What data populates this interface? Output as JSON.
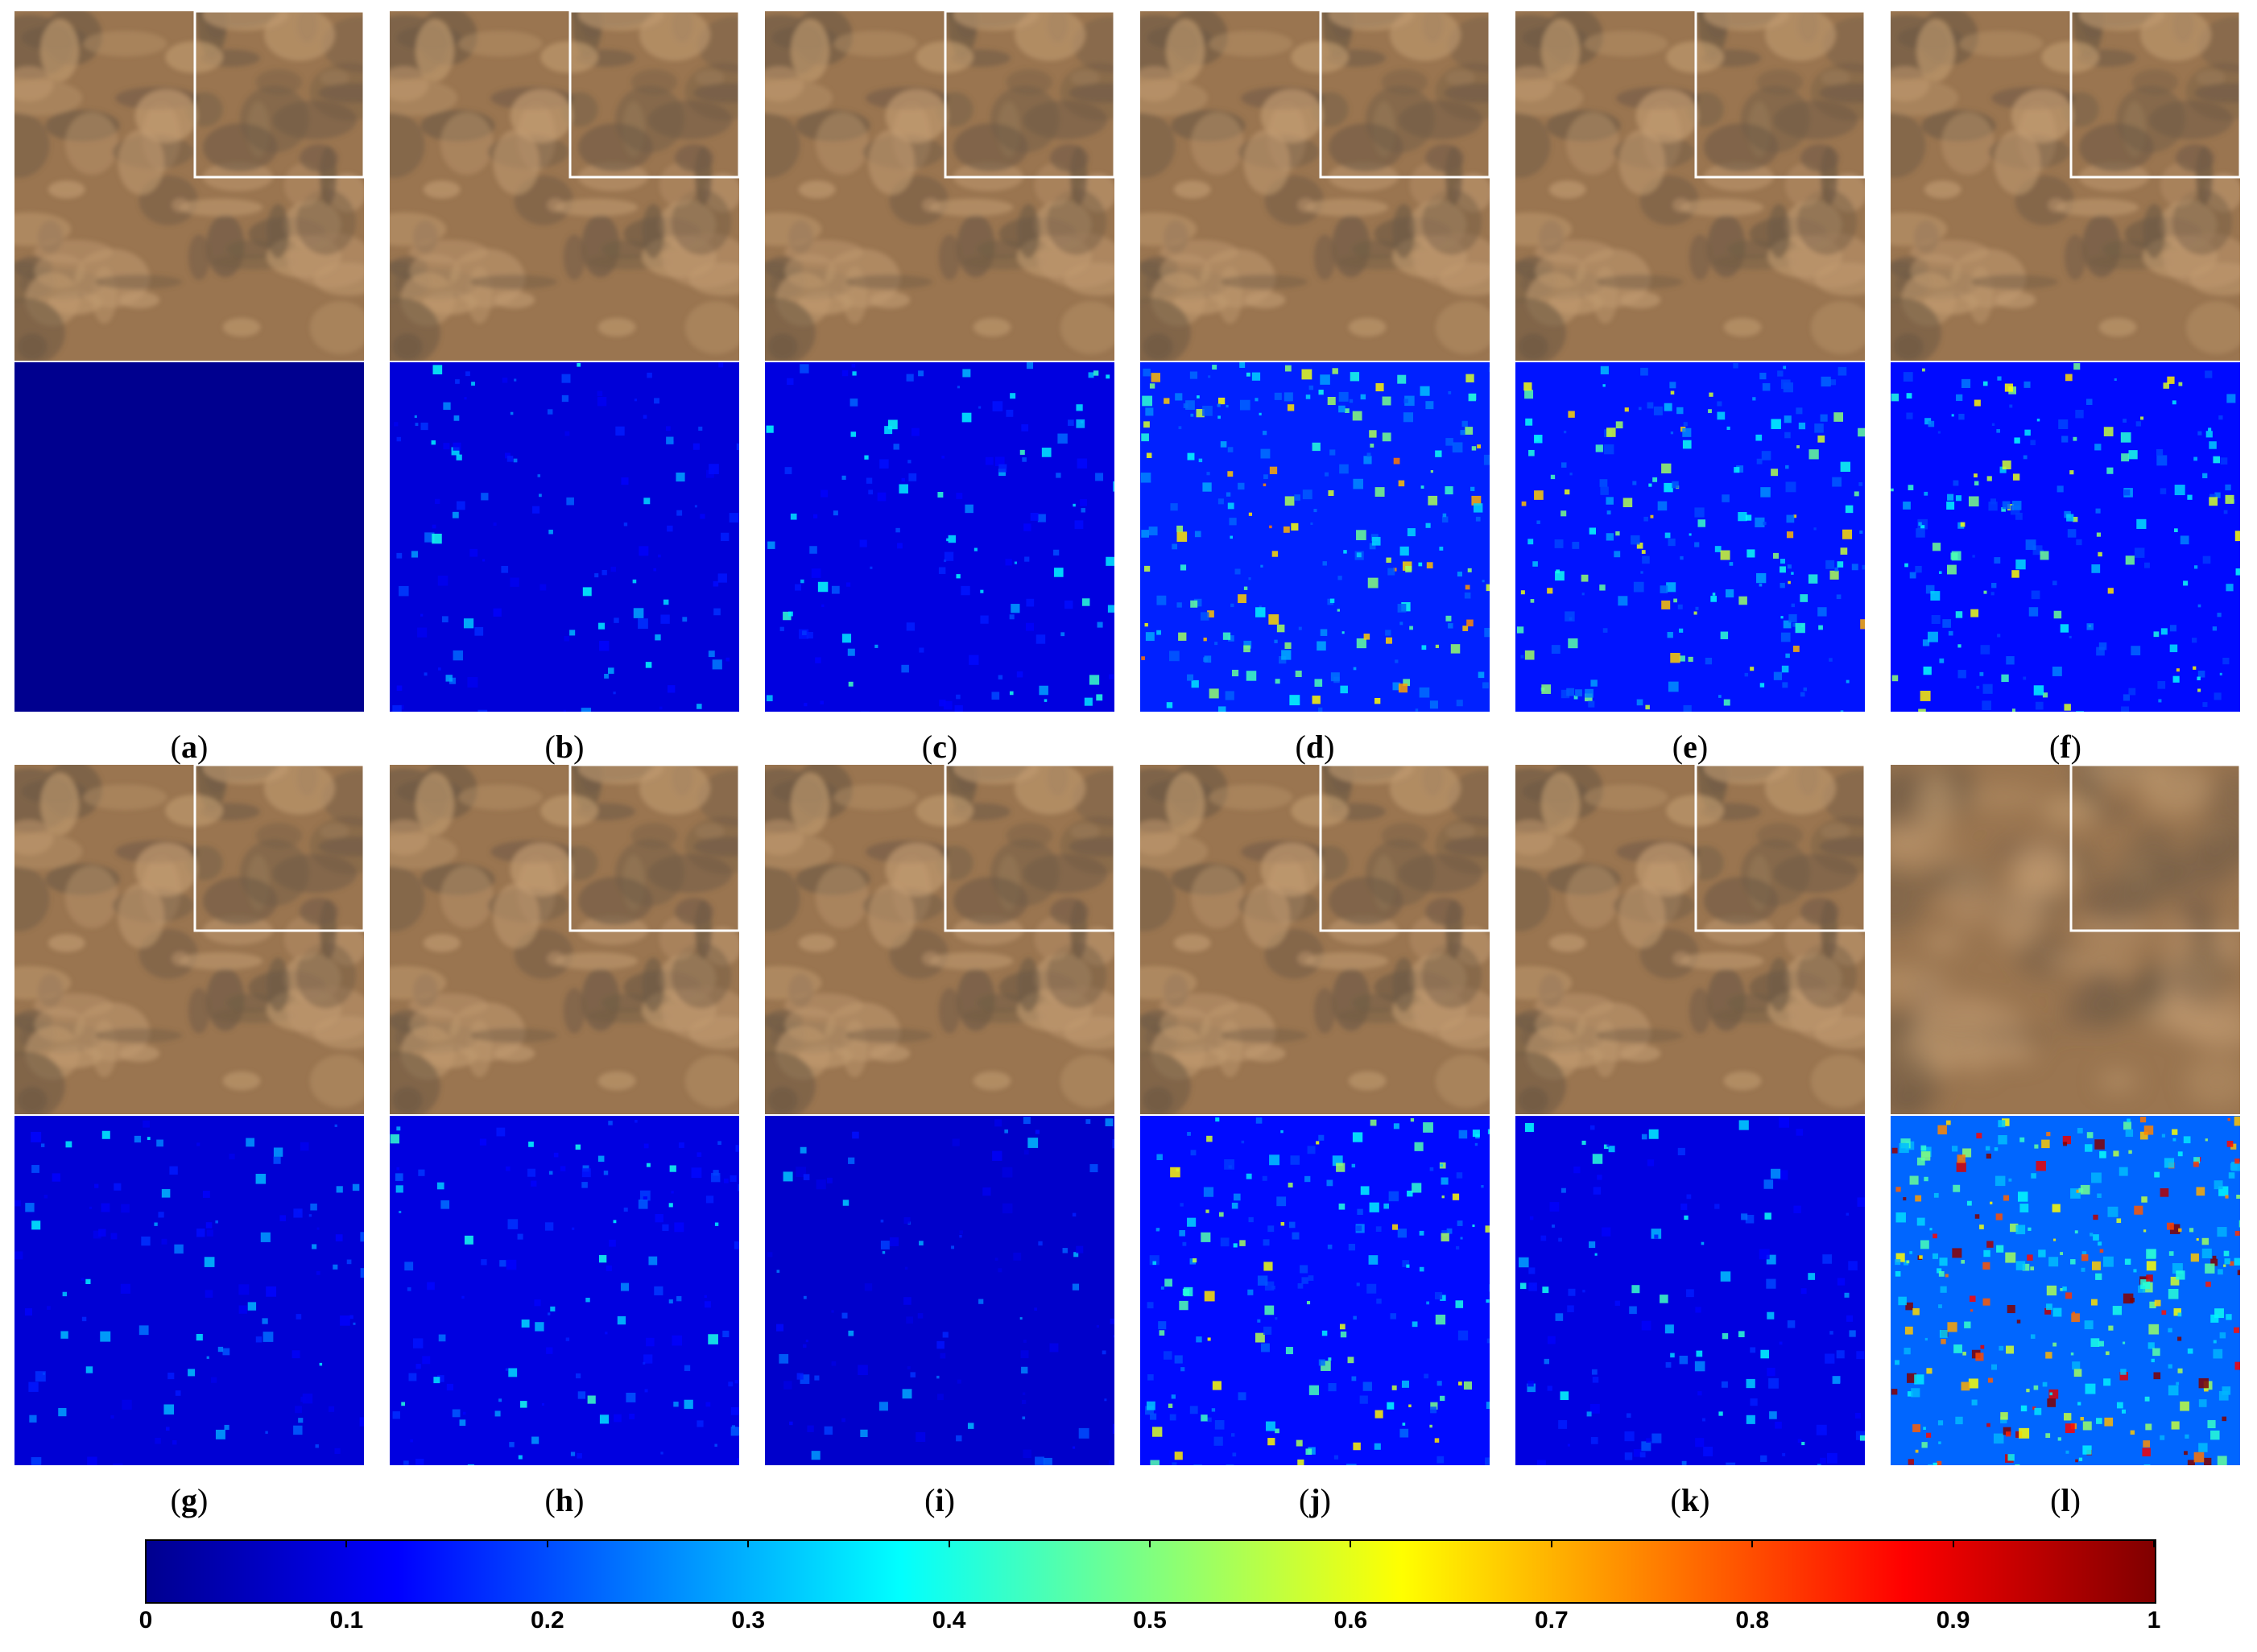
{
  "panels": [
    {
      "id": "a",
      "label": "a",
      "top": "satellite-rgb-result-a",
      "bottom": "error-map-a",
      "error_level": 0.0
    },
    {
      "id": "b",
      "label": "b",
      "top": "satellite-rgb-result-b",
      "bottom": "error-map-b",
      "error_level": 0.18
    },
    {
      "id": "c",
      "label": "c",
      "top": "satellite-rgb-result-c",
      "bottom": "error-map-c",
      "error_level": 0.2
    },
    {
      "id": "d",
      "label": "d",
      "top": "satellite-rgb-result-d",
      "bottom": "error-map-d",
      "error_level": 0.35
    },
    {
      "id": "e",
      "label": "e",
      "top": "satellite-rgb-result-e",
      "bottom": "error-map-e",
      "error_level": 0.32
    },
    {
      "id": "f",
      "label": "f",
      "top": "satellite-rgb-result-f",
      "bottom": "error-map-f",
      "error_level": 0.3
    },
    {
      "id": "g",
      "label": "g",
      "top": "satellite-rgb-result-g",
      "bottom": "error-map-g",
      "error_level": 0.17
    },
    {
      "id": "h",
      "label": "h",
      "top": "satellite-rgb-result-h",
      "bottom": "error-map-h",
      "error_level": 0.2
    },
    {
      "id": "i",
      "label": "i",
      "top": "satellite-rgb-result-i",
      "bottom": "error-map-i",
      "error_level": 0.15
    },
    {
      "id": "j",
      "label": "j",
      "top": "satellite-rgb-result-j",
      "bottom": "error-map-j",
      "error_level": 0.3
    },
    {
      "id": "k",
      "label": "k",
      "top": "satellite-rgb-result-k",
      "bottom": "error-map-k",
      "error_level": 0.2
    },
    {
      "id": "l",
      "label": "l",
      "top": "satellite-rgb-blurred-l",
      "bottom": "error-map-l",
      "error_level": 0.5
    }
  ],
  "colorbar": {
    "colormap": "jet",
    "ticks": [
      "0",
      "0.1",
      "0.2",
      "0.3",
      "0.4",
      "0.5",
      "0.6",
      "0.7",
      "0.8",
      "0.9",
      "1"
    ],
    "stops": [
      "#00008f",
      "#0000ff",
      "#0080ff",
      "#00ffff",
      "#80ff80",
      "#ffff00",
      "#ff8000",
      "#ff0000",
      "#800000"
    ]
  },
  "colors": {
    "terrain": "#9a7550",
    "terrain_dark": "#6e5a45",
    "terrain_light": "#c09a70",
    "inset_border": "#ffffff"
  }
}
